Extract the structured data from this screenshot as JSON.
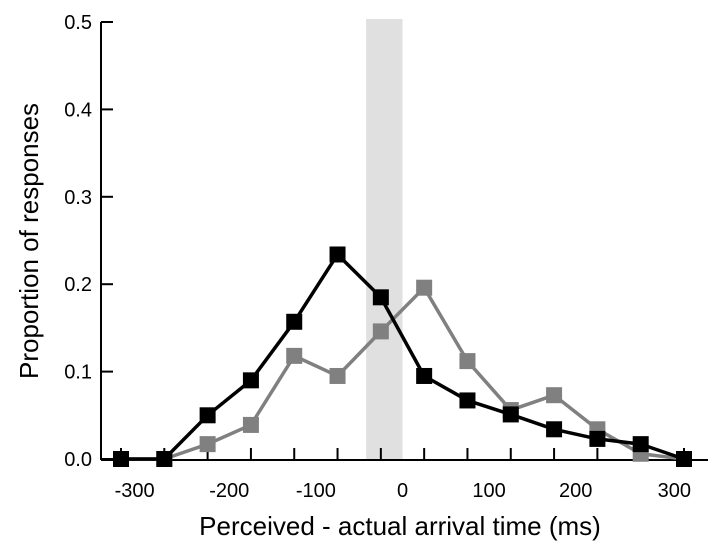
{
  "chart_data": {
    "type": "line",
    "xlabel": "Perceived - actual arrival time (ms)",
    "ylabel": "Proportion of responses",
    "xlim": [
      -330,
      330
    ],
    "ylim": [
      0,
      0.5
    ],
    "x_ticks": [
      -300,
      -200,
      -100,
      0,
      100,
      200,
      300
    ],
    "x_tick_labels": [
      "-300",
      "-200",
      "-100",
      "0",
      "100",
      "200",
      "300"
    ],
    "y_ticks": [
      0,
      0.1,
      0.2,
      0.3,
      0.4,
      0.5
    ],
    "y_tick_labels": [
      "0.0",
      "0.1",
      "0.2",
      "0.3",
      "0.4",
      "0.5"
    ],
    "grid": false,
    "shaded_region": {
      "x": [
        -42,
        0
      ],
      "color": "#e0e0e0"
    },
    "series": [
      {
        "color": "#808080",
        "marker": "square",
        "x": [
          -325,
          -275,
          -225,
          -175,
          -125,
          -75,
          -25,
          25,
          75,
          125,
          175,
          225,
          275,
          325
        ],
        "y": [
          0.0,
          0.0,
          0.017,
          0.039,
          0.118,
          0.095,
          0.146,
          0.196,
          0.112,
          0.056,
          0.073,
          0.034,
          0.006,
          0.0
        ]
      },
      {
        "color": "#000000",
        "marker": "square",
        "x": [
          -325,
          -275,
          -225,
          -175,
          -125,
          -75,
          -25,
          25,
          75,
          125,
          175,
          225,
          275,
          325
        ],
        "y": [
          0.0,
          0.0,
          0.05,
          0.09,
          0.157,
          0.234,
          0.185,
          0.095,
          0.067,
          0.051,
          0.034,
          0.023,
          0.017,
          0.0
        ]
      }
    ]
  }
}
